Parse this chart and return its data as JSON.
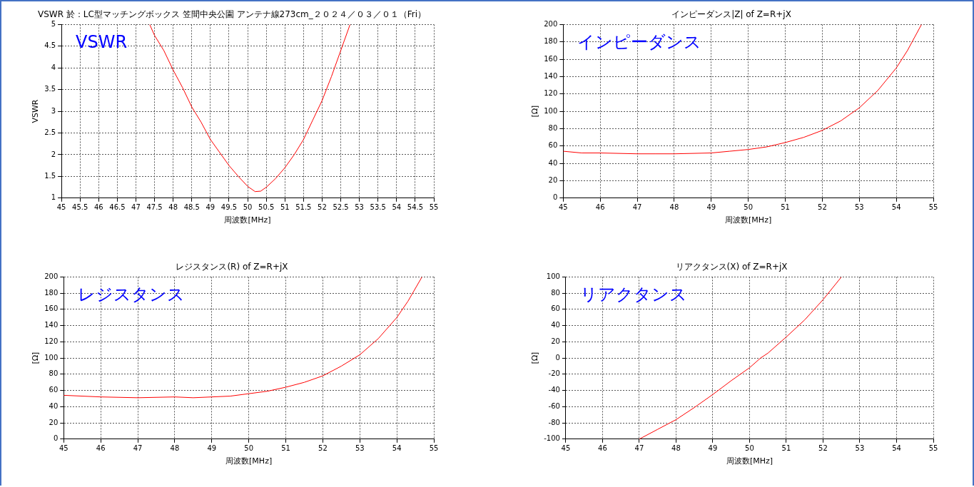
{
  "chart_data": [
    {
      "type": "line",
      "title": "VSWR 於：LC型マッチングボックス 笠間中央公園 アンテナ線273cm_２０２４／０３／０１（Fri）",
      "xlabel": "周波数[MHz]",
      "ylabel": "VSWR",
      "annotations": [
        "VSWR"
      ],
      "grid": true,
      "legend": false,
      "xlim": [
        45,
        55
      ],
      "xticks": [
        45,
        45.5,
        46,
        46.5,
        47,
        47.5,
        48,
        48.5,
        49,
        49.5,
        50,
        50.5,
        51,
        51.5,
        52,
        52.5,
        53,
        53.5,
        54,
        54.5,
        55
      ],
      "ylim": [
        1,
        5
      ],
      "yticks": [
        1,
        1.5,
        2,
        2.5,
        3,
        3.5,
        4,
        4.5,
        5
      ],
      "series": [
        {
          "color": "#ff0000",
          "x": [
            47.37,
            47.5,
            47.75,
            48,
            48.25,
            48.5,
            48.75,
            49,
            49.25,
            49.5,
            49.75,
            50,
            50.2,
            50.35,
            50.5,
            50.75,
            51,
            51.25,
            51.5,
            51.75,
            52,
            52.25,
            52.5,
            52.75
          ],
          "values": [
            5,
            4.75,
            4.4,
            3.95,
            3.55,
            3.1,
            2.75,
            2.35,
            2.05,
            1.75,
            1.5,
            1.27,
            1.15,
            1.16,
            1.25,
            1.45,
            1.7,
            2.0,
            2.35,
            2.8,
            3.25,
            3.8,
            4.4,
            5
          ]
        }
      ]
    },
    {
      "type": "line",
      "title": "インピーダンス|Z| of Z=R+jX",
      "xlabel": "周波数[MHz]",
      "ylabel": "[Ω]",
      "annotations": [
        "インピーダンス"
      ],
      "grid": true,
      "legend": false,
      "xlim": [
        45,
        55
      ],
      "xticks": [
        45,
        46,
        47,
        48,
        49,
        50,
        51,
        52,
        53,
        54,
        55
      ],
      "ylim": [
        0,
        200
      ],
      "yticks": [
        0,
        20,
        40,
        60,
        80,
        100,
        120,
        140,
        160,
        180,
        200
      ],
      "series": [
        {
          "color": "#ff0000",
          "x": [
            45,
            45.5,
            46,
            47,
            47.5,
            48,
            49,
            49.5,
            50,
            50.5,
            51,
            51.5,
            52,
            52.5,
            53,
            53.5,
            54,
            54.3,
            54.68
          ],
          "values": [
            54,
            52,
            52,
            51,
            51,
            51,
            52,
            54,
            56,
            59,
            64,
            70,
            78,
            89,
            104,
            124,
            150,
            170,
            200
          ]
        }
      ]
    },
    {
      "type": "line",
      "title": "レジスタンス(R) of Z=R+jX",
      "xlabel": "周波数[MHz]",
      "ylabel": "[Ω]",
      "annotations": [
        "レジスタンス"
      ],
      "grid": true,
      "legend": false,
      "xlim": [
        45,
        55
      ],
      "xticks": [
        45,
        46,
        47,
        48,
        49,
        50,
        51,
        52,
        53,
        54,
        55
      ],
      "ylim": [
        0,
        200
      ],
      "yticks": [
        0,
        20,
        40,
        60,
        80,
        100,
        120,
        140,
        160,
        180,
        200
      ],
      "series": [
        {
          "color": "#ff0000",
          "x": [
            45,
            46,
            47,
            48,
            48.5,
            49,
            49.5,
            50,
            50.5,
            51,
            51.5,
            52,
            52.5,
            53,
            53.5,
            54,
            54.3,
            54.68
          ],
          "values": [
            54,
            52,
            51,
            52,
            51,
            52,
            53,
            56,
            59,
            64,
            70,
            78,
            90,
            104,
            124,
            150,
            170,
            200
          ]
        }
      ]
    },
    {
      "type": "line",
      "title": "リアクタンス(X) of Z=R+jX",
      "xlabel": "周波数[MHz]",
      "ylabel": "[Ω]",
      "annotations": [
        "リアクタンス"
      ],
      "grid": true,
      "legend": false,
      "xlim": [
        45,
        55
      ],
      "xticks": [
        45,
        46,
        47,
        48,
        49,
        50,
        51,
        52,
        53,
        54,
        55
      ],
      "ylim": [
        -100,
        100
      ],
      "yticks": [
        -100,
        -80,
        -60,
        -40,
        -20,
        0,
        20,
        40,
        60,
        80,
        100
      ],
      "series": [
        {
          "color": "#ff0000",
          "x": [
            47,
            47.5,
            48,
            48.5,
            49,
            49.5,
            50,
            50.3,
            50.5,
            51,
            51.5,
            52,
            52.5
          ],
          "values": [
            -100,
            -88,
            -76,
            -61,
            -45,
            -28,
            -12,
            0,
            6,
            26,
            47,
            72,
            100
          ]
        }
      ]
    }
  ]
}
